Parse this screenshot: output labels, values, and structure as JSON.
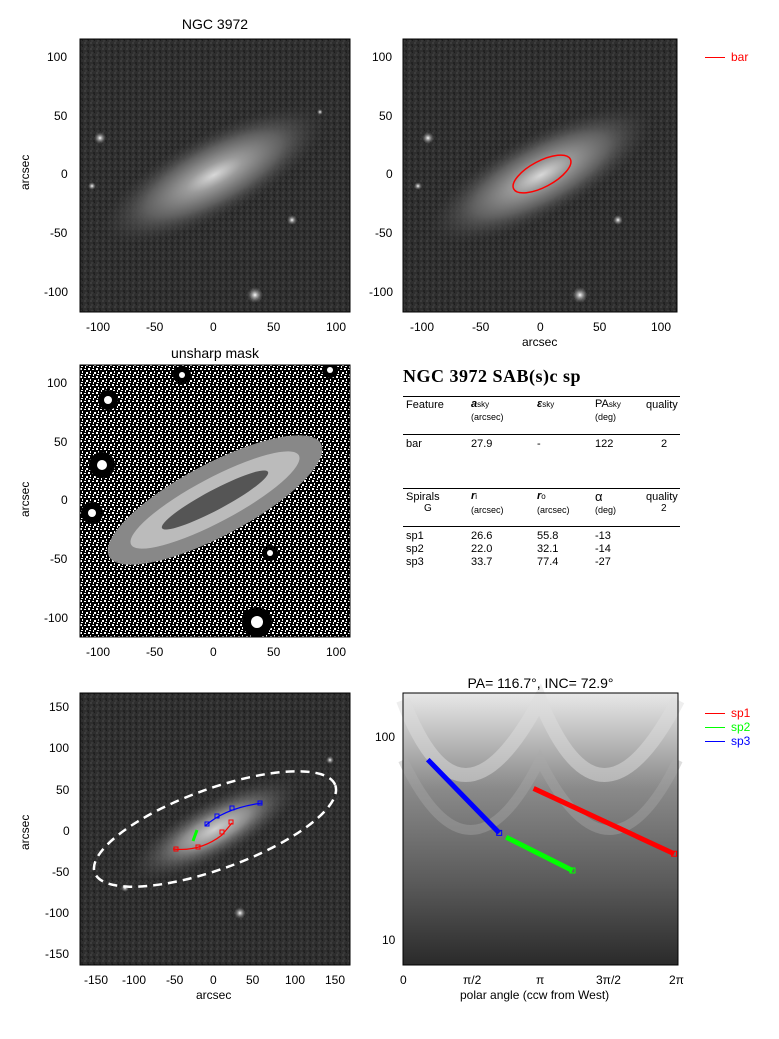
{
  "panels": {
    "image": {
      "title": "NGC 3972",
      "ylabel": "arcsec",
      "xticks": [
        "-100",
        "-50",
        "0",
        "50",
        "100"
      ],
      "yticks": [
        "100",
        "50",
        "0",
        "-50",
        "-100"
      ]
    },
    "bar_overlay": {
      "xlabel": "arcsec",
      "legend": "bar",
      "legend_color": "#ff0000",
      "xticks": [
        "-100",
        "-50",
        "0",
        "50",
        "100"
      ],
      "yticks": [
        "100",
        "50",
        "0",
        "-50",
        "-100"
      ]
    },
    "unsharp": {
      "title": "unsharp mask",
      "ylabel": "arcsec",
      "xticks": [
        "-100",
        "-50",
        "0",
        "50",
        "100"
      ],
      "yticks": [
        "100",
        "50",
        "0",
        "-50",
        "-100"
      ]
    },
    "spiral_overlay": {
      "xlabel": "arcsec",
      "ylabel": "arcsec",
      "xticks": [
        "-150",
        "-100",
        "-50",
        "0",
        "50",
        "100",
        "150"
      ],
      "yticks": [
        "150",
        "100",
        "50",
        "0",
        "-50",
        "-100",
        "-150"
      ]
    },
    "polar": {
      "title": "PA= 116.7°, INC=  72.9°",
      "xlabel": "polar angle (ccw from West)",
      "xticks": [
        "0",
        "π/2",
        "π",
        "3π/2",
        "2π"
      ],
      "yticks": [
        "100",
        "10"
      ],
      "legend": [
        {
          "label": "sp1",
          "color": "#ff0000"
        },
        {
          "label": "sp2",
          "color": "#00ff00"
        },
        {
          "label": "sp3",
          "color": "#0000ff"
        }
      ]
    }
  },
  "table": {
    "title": "NGC 3972  SAB(s)c sp",
    "bar_header": {
      "feature": "Feature",
      "a": "a",
      "a_sub": "sky",
      "a_unit": "(arcsec)",
      "e": "ε",
      "e_sub": "sky",
      "pa": "PA",
      "pa_sub": "sky",
      "pa_unit": "(deg)",
      "quality": "quality"
    },
    "bar_row": {
      "feature": "bar",
      "a": "27.9",
      "e": "-",
      "pa": "122",
      "quality": "2"
    },
    "spiral_header": {
      "feature": "Spirals",
      "feature2": "G",
      "ri": "r",
      "ri_sub": "i",
      "ri_unit": "(arcsec)",
      "ro": "r",
      "ro_sub": "o",
      "ro_unit": "(arcsec)",
      "alpha": "α",
      "alpha_unit": "(deg)",
      "quality": "quality",
      "quality_val": "2"
    },
    "spiral_rows": [
      {
        "name": "sp1",
        "ri": "26.6",
        "ro": "55.8",
        "alpha": "-13"
      },
      {
        "name": "sp2",
        "ri": "22.0",
        "ro": "32.1",
        "alpha": "-14"
      },
      {
        "name": "sp3",
        "ri": "33.7",
        "ro": "77.4",
        "alpha": "-27"
      }
    ]
  }
}
